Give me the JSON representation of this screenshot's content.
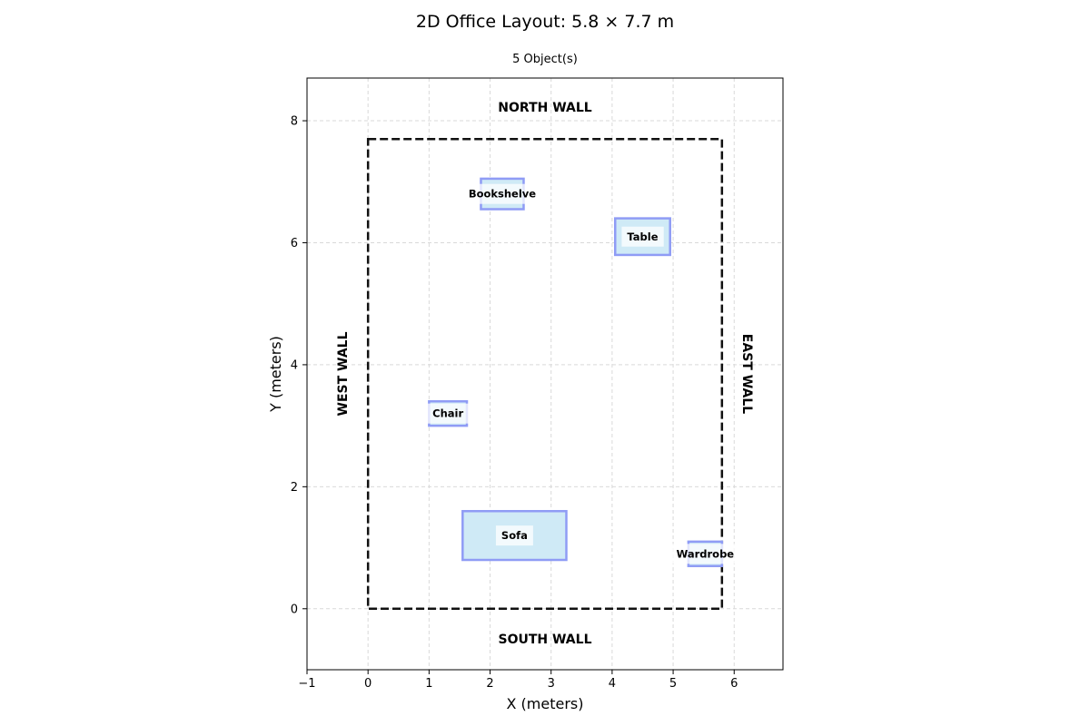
{
  "title": "2D Office Layout: 5.8 × 7.7 m",
  "subtitle": "5 Object(s)",
  "axes": {
    "xlabel": "X (meters)",
    "ylabel": "Y (meters)",
    "xlim": [
      -1,
      6.8
    ],
    "ylim": [
      -1,
      8.7
    ],
    "xticks": [
      "−1",
      "0",
      "1",
      "2",
      "3",
      "4",
      "5",
      "6"
    ],
    "yticks": [
      "0",
      "2",
      "4",
      "6",
      "8"
    ],
    "grid": true
  },
  "walls": {
    "north": "NORTH WALL",
    "south": "SOUTH WALL",
    "west": "WEST WALL",
    "east": "EAST WALL"
  },
  "room": {
    "width": 5.8,
    "height": 7.7
  },
  "colors": {
    "object_fill": "#cfeaf6",
    "object_edge": "#8f9cf5",
    "room_edge": "#111111"
  },
  "chart_data": {
    "type": "floor-plan",
    "title": "2D Office Layout: 5.8 × 7.7 m",
    "subtitle": "5 Object(s)",
    "xlabel": "X (meters)",
    "ylabel": "Y (meters)",
    "xlim": [
      -1,
      6.8
    ],
    "ylim": [
      -1,
      8.7
    ],
    "grid": true,
    "objects": [
      {
        "name": "Bookshelve",
        "x": 1.85,
        "y": 6.55,
        "w": 0.7,
        "h": 0.5
      },
      {
        "name": "Table",
        "x": 4.05,
        "y": 5.8,
        "w": 0.9,
        "h": 0.6
      },
      {
        "name": "Chair",
        "x": 1.0,
        "y": 3.0,
        "w": 0.62,
        "h": 0.4
      },
      {
        "name": "Sofa",
        "x": 1.55,
        "y": 0.8,
        "w": 1.7,
        "h": 0.8
      },
      {
        "name": "Wardrobe",
        "x": 5.25,
        "y": 0.7,
        "w": 0.55,
        "h": 0.4
      }
    ]
  }
}
